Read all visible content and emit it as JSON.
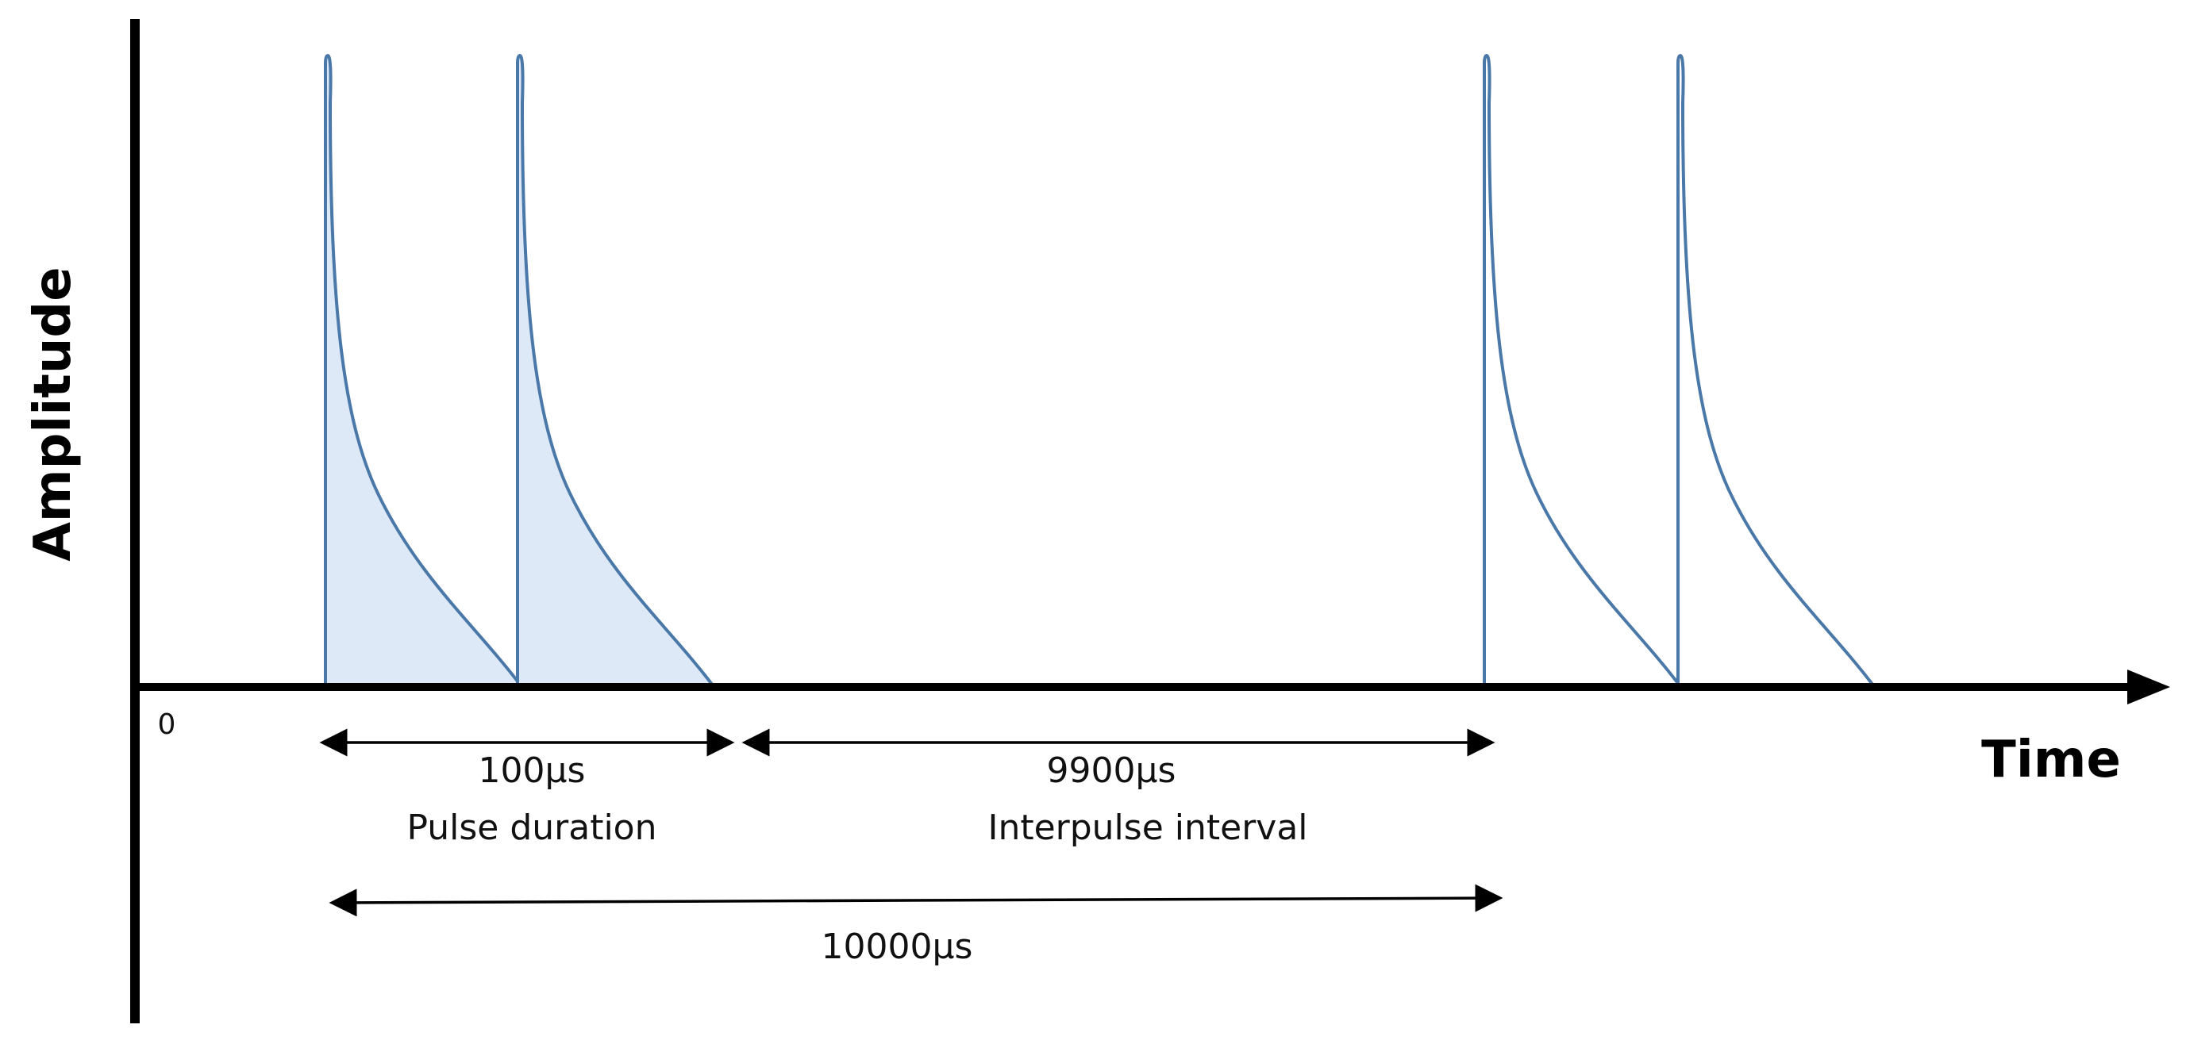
{
  "axes": {
    "y_label": "Amplitude",
    "x_label": "Time",
    "origin_label": "0"
  },
  "pulses": [
    {
      "id": "pulse-1",
      "shaded": true
    },
    {
      "id": "pulse-2",
      "shaded": true
    },
    {
      "id": "pulse-3",
      "shaded": false
    },
    {
      "id": "pulse-4",
      "shaded": false
    }
  ],
  "annotations": {
    "pulse_duration": {
      "value": "100µs",
      "label": "Pulse duration"
    },
    "interpulse_interval": {
      "value": "9900µs",
      "label": "Interpulse interval"
    },
    "period": {
      "value": "10000µs"
    }
  },
  "colors": {
    "pulse_stroke": "#4a78a8",
    "pulse_fill": "#dde9f6",
    "axis": "#000000"
  }
}
